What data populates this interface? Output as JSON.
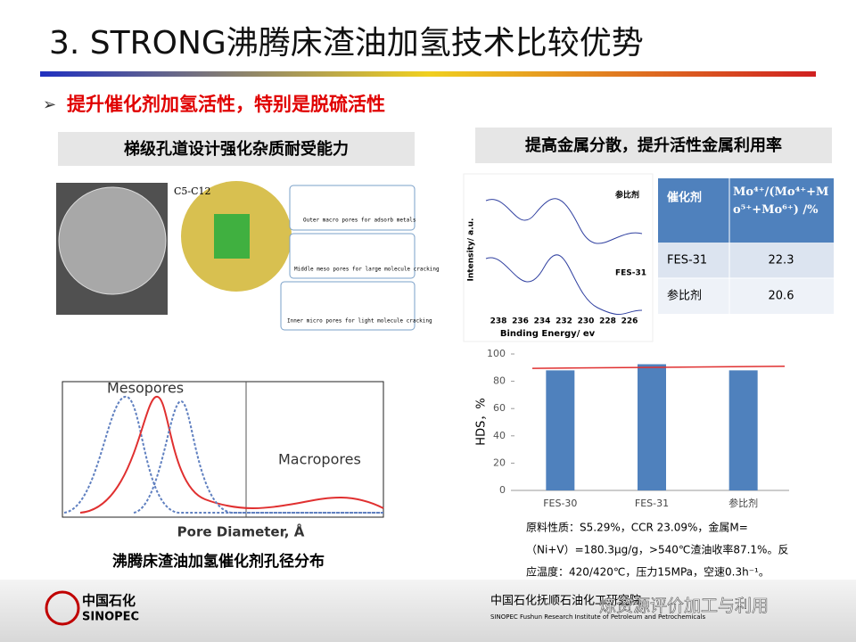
{
  "header": {
    "title": "3. STRONG沸腾床渣油加氢技术比较优势",
    "bullet": "提升催化剂加氢活性，特别是脱硫活性"
  },
  "left": {
    "caption": "梯级孔道设计强化杂质耐受能力",
    "carbon": "C5-C12",
    "pores": [
      "Outer macro pores for adsorb metals",
      "Middle meso pores for large molecule cracking",
      "Inner micro pores for light molecule cracking"
    ]
  },
  "right": {
    "caption": "提高金属分散，提升活性金属利用率"
  },
  "xps": {
    "xlabel": "Binding Energy/ ev",
    "ylabel": "Intensity/ a.u.",
    "xticks": [
      "238",
      "236",
      "234",
      "232",
      "230",
      "228",
      "226"
    ],
    "samples": [
      "参比剂",
      "FES-31"
    ]
  },
  "table": {
    "header": [
      "催化剂",
      "Mo⁴⁺/(Mo⁴⁺+Mo⁵⁺+Mo⁶⁺) /%"
    ],
    "rows": [
      [
        "FES-31",
        "22.3"
      ],
      [
        "参比剂",
        "20.6"
      ]
    ]
  },
  "pore_chart": {
    "labels": [
      "Mesopores",
      "Macropores"
    ],
    "xlabel": "Pore Diameter, Å",
    "caption": "沸腾床渣油加氢催化剂孔径分布"
  },
  "chart_data": {
    "type": "bar",
    "ylabel": "HDS，%",
    "categories": [
      "FES-30",
      "FES-31",
      "参比剂"
    ],
    "values": [
      88,
      92.5,
      88
    ],
    "color": "#4f81bd",
    "ylim": [
      0,
      100
    ],
    "yticks": [
      0,
      20,
      40,
      60,
      80,
      100
    ],
    "reference_line": {
      "color": "#e03030",
      "values": [
        89.5,
        91
      ]
    }
  },
  "notes": [
    "原料性质：S5.29%，CCR 23.09%，金属M=",
    "（Ni+V）=180.3μg/g，>540℃渣油收率87.1%。反",
    "应温度：420/420℃，压力15MPa，空速0.3h⁻¹。"
  ],
  "footer": {
    "logo_cn": "中国石化",
    "logo_en": "SINOPEC",
    "institute_cn": "中国石化抚顺石油化工研究院",
    "institute_en": "SINOPEC Fushun Research Institute of Petroleum and Petrochemicals",
    "watermark": "炼资源评价加工与利用"
  }
}
